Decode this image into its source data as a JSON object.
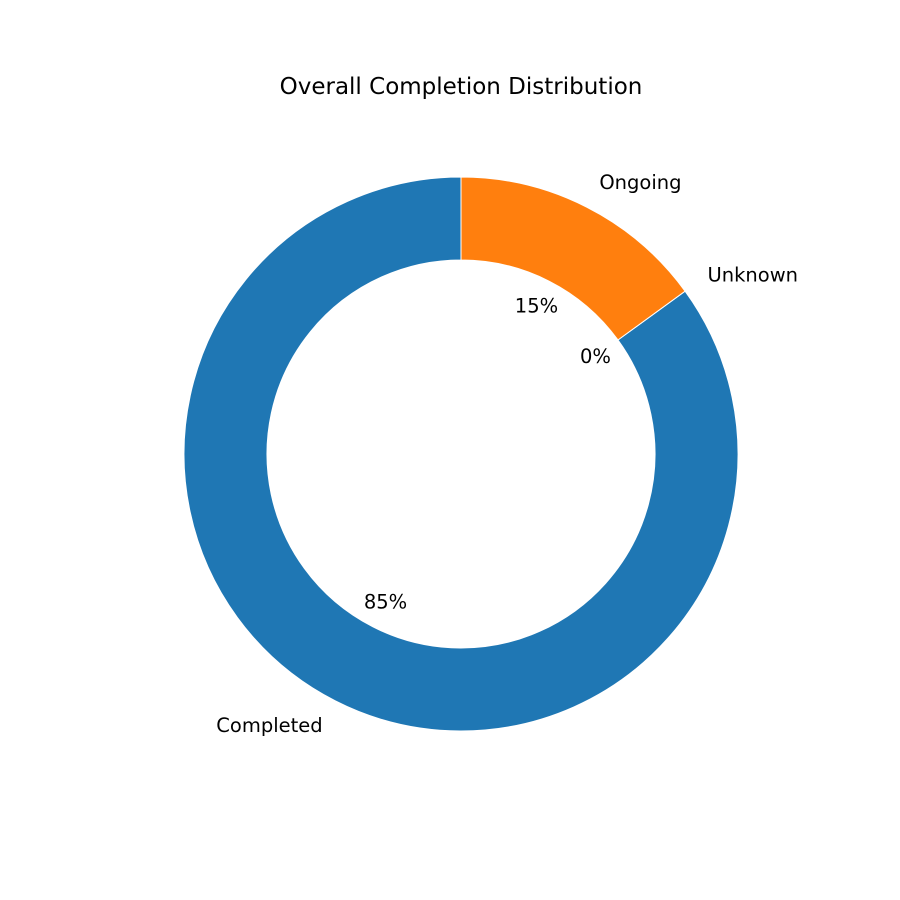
{
  "chart_data": {
    "type": "pie",
    "variant": "donut",
    "title": "Overall Completion Distribution",
    "start_angle": 90,
    "direction": "counterclockwise",
    "slices": [
      {
        "label": "Completed",
        "value": 85,
        "pct_label": "85%",
        "color": "#1f77b4"
      },
      {
        "label": "Unknown",
        "value": 0,
        "pct_label": "0%",
        "color": "#2ca02c"
      },
      {
        "label": "Ongoing",
        "value": 15,
        "pct_label": "15%",
        "color": "#ff7f0e"
      }
    ],
    "legend": "none"
  }
}
